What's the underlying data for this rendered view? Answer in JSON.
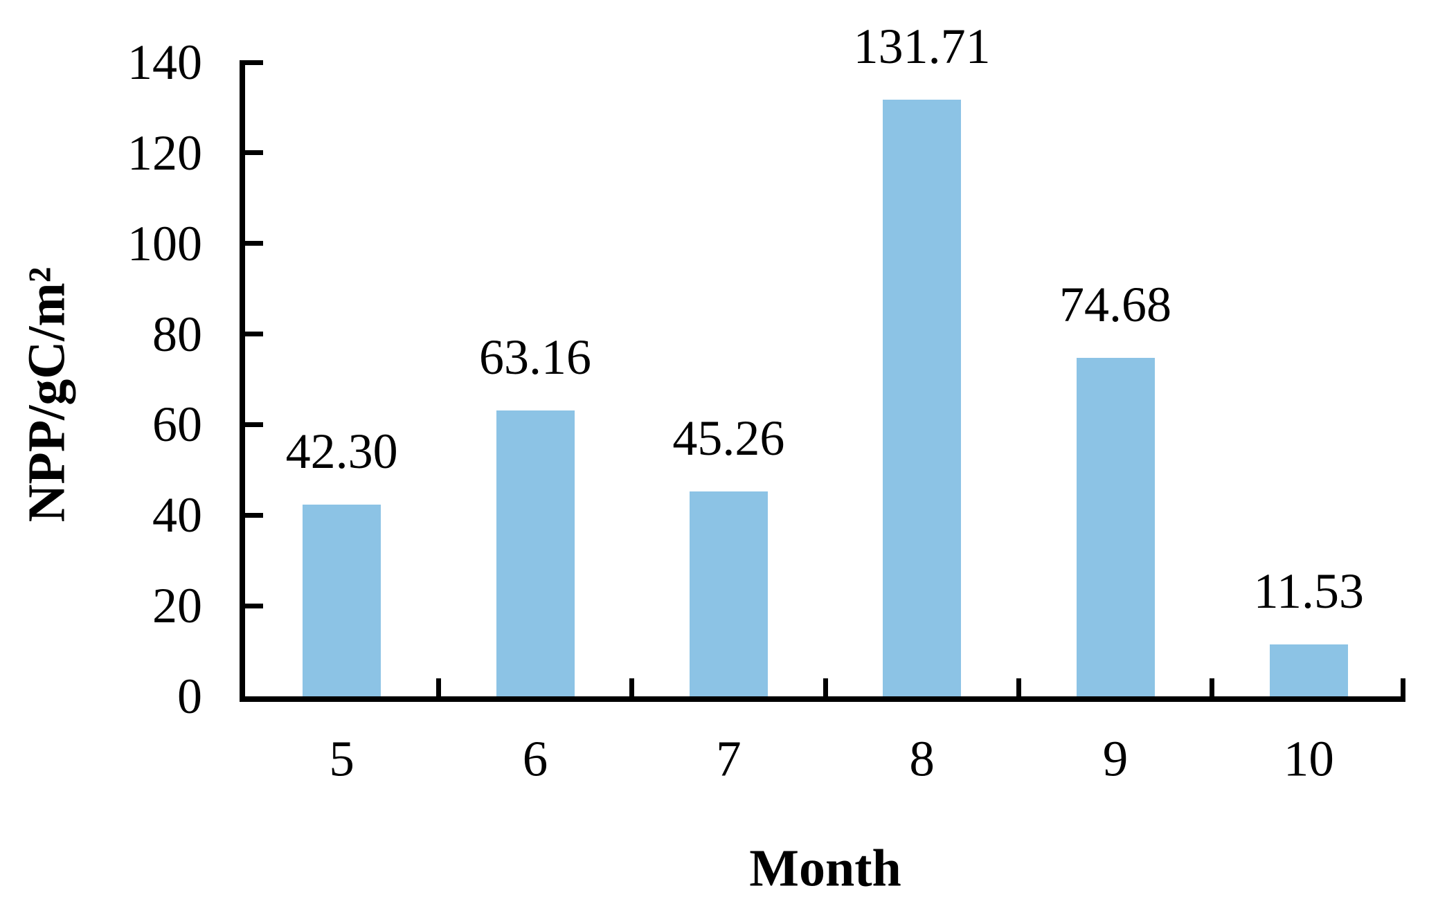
{
  "figure": {
    "background": "#ffffff"
  },
  "chart_data": {
    "type": "bar",
    "title": "",
    "categories": [
      "5",
      "6",
      "7",
      "8",
      "9",
      "10"
    ],
    "values": [
      42.3,
      63.16,
      45.26,
      131.71,
      74.68,
      11.53
    ],
    "value_labels": [
      "42.30",
      "63.16",
      "45.26",
      "131.71",
      "74.68",
      "11.53"
    ],
    "xlabel": "Month",
    "ylabel": "NPP/gC/m²",
    "ylim": [
      0,
      140
    ],
    "yticks": [
      0,
      20,
      40,
      60,
      80,
      100,
      120,
      140
    ],
    "ytick_labels": [
      "0",
      "20",
      "40",
      "60",
      "80",
      "100",
      "120",
      "140"
    ],
    "grid": false,
    "legend": "none",
    "tick_direction": "in",
    "bar_color": "#8CC3E5",
    "axis_color": "#000000",
    "text_color": "#000000"
  }
}
